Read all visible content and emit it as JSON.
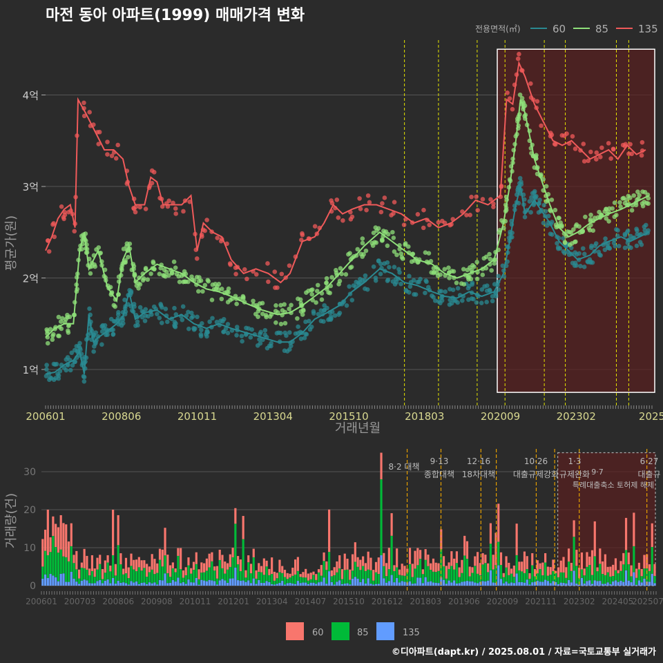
{
  "colors": {
    "bg": "#2b2b2b",
    "grid": "#555555",
    "s60": "#2a8a92",
    "s85": "#8fe07a",
    "s135": "#f05a5a",
    "vol60": "#f8766d",
    "vol85": "#00ba38",
    "vol135": "#619cff",
    "policy_yellow": "#e6e600",
    "policy_orange": "#e6a000",
    "highlight": "#5a2020"
  },
  "texts": {
    "title": "마전 동아 아파트(1999) 매매가격 변화",
    "legend_title": "전용면적(㎡)",
    "legend_60": "60",
    "legend_85": "85",
    "legend_135": "135",
    "credit": "©디아파트(dapt.kr) / 2025.08.01 / 자료=국토교통부 실거래가"
  },
  "chart_data": [
    {
      "type": "line",
      "title": "마전 동아 아파트(1999) 매매가격 변화",
      "xlabel": "거래년월",
      "ylabel": "평균가(원)",
      "x_tick_labels": [
        "200601",
        "200806",
        "201011",
        "201304",
        "201510",
        "201803",
        "202009",
        "202302",
        "2025"
      ],
      "y_tick_labels": [
        "1억",
        "2억",
        "3억",
        "4억"
      ],
      "y_ticks": [
        1,
        2,
        3,
        4
      ],
      "xlim": [
        2006.0,
        2025.6
      ],
      "ylim": [
        0.6,
        4.6
      ],
      "series": [
        {
          "name": "60",
          "points": [
            [
              2006.0,
              0.95
            ],
            [
              2006.3,
              0.97
            ],
            [
              2006.6,
              1.05
            ],
            [
              2006.9,
              1.1
            ],
            [
              2007.1,
              1.2
            ],
            [
              2007.25,
              0.95
            ],
            [
              2007.4,
              1.6
            ],
            [
              2007.55,
              1.3
            ],
            [
              2007.7,
              1.35
            ],
            [
              2008.0,
              1.42
            ],
            [
              2008.3,
              1.5
            ],
            [
              2008.5,
              1.58
            ],
            [
              2008.7,
              1.85
            ],
            [
              2008.9,
              1.55
            ],
            [
              2009.2,
              1.62
            ],
            [
              2009.6,
              1.65
            ],
            [
              2010.0,
              1.55
            ],
            [
              2010.4,
              1.6
            ],
            [
              2010.8,
              1.5
            ],
            [
              2011.2,
              1.45
            ],
            [
              2011.6,
              1.5
            ],
            [
              2012.0,
              1.45
            ],
            [
              2012.5,
              1.4
            ],
            [
              2013.0,
              1.35
            ],
            [
              2013.5,
              1.3
            ],
            [
              2013.9,
              1.3
            ],
            [
              2014.3,
              1.4
            ],
            [
              2014.7,
              1.55
            ],
            [
              2015.1,
              1.62
            ],
            [
              2015.5,
              1.7
            ],
            [
              2015.9,
              1.85
            ],
            [
              2016.3,
              1.95
            ],
            [
              2016.8,
              2.1
            ],
            [
              2017.2,
              2.05
            ],
            [
              2017.6,
              1.95
            ],
            [
              2018.0,
              1.92
            ],
            [
              2018.5,
              1.85
            ],
            [
              2018.9,
              1.8
            ],
            [
              2019.3,
              1.78
            ],
            [
              2019.7,
              1.85
            ],
            [
              2020.1,
              1.8
            ],
            [
              2020.5,
              1.85
            ],
            [
              2020.8,
              2.05
            ],
            [
              2021.0,
              2.4
            ],
            [
              2021.2,
              2.8
            ],
            [
              2021.35,
              3.0
            ],
            [
              2021.5,
              2.7
            ],
            [
              2021.8,
              2.85
            ],
            [
              2022.0,
              2.75
            ],
            [
              2022.3,
              2.6
            ],
            [
              2022.6,
              2.4
            ],
            [
              2022.9,
              2.3
            ],
            [
              2023.2,
              2.2
            ],
            [
              2023.6,
              2.25
            ],
            [
              2023.9,
              2.35
            ],
            [
              2024.2,
              2.4
            ],
            [
              2024.6,
              2.45
            ],
            [
              2024.9,
              2.4
            ],
            [
              2025.2,
              2.45
            ],
            [
              2025.5,
              2.5
            ]
          ]
        },
        {
          "name": "85",
          "points": [
            [
              2006.0,
              1.35
            ],
            [
              2006.3,
              1.45
            ],
            [
              2006.6,
              1.5
            ],
            [
              2006.9,
              1.5
            ],
            [
              2007.1,
              2.3
            ],
            [
              2007.25,
              2.5
            ],
            [
              2007.4,
              2.1
            ],
            [
              2007.7,
              2.3
            ],
            [
              2008.0,
              1.9
            ],
            [
              2008.3,
              1.75
            ],
            [
              2008.5,
              2.2
            ],
            [
              2008.7,
              2.35
            ],
            [
              2008.9,
              1.95
            ],
            [
              2009.2,
              2.05
            ],
            [
              2009.6,
              2.15
            ],
            [
              2010.0,
              2.1
            ],
            [
              2010.4,
              2.05
            ],
            [
              2010.8,
              1.95
            ],
            [
              2011.2,
              1.88
            ],
            [
              2011.6,
              1.85
            ],
            [
              2012.0,
              1.8
            ],
            [
              2012.5,
              1.72
            ],
            [
              2013.0,
              1.65
            ],
            [
              2013.5,
              1.6
            ],
            [
              2013.9,
              1.62
            ],
            [
              2014.3,
              1.7
            ],
            [
              2014.7,
              1.8
            ],
            [
              2015.1,
              1.9
            ],
            [
              2015.5,
              2.05
            ],
            [
              2015.9,
              2.2
            ],
            [
              2016.3,
              2.35
            ],
            [
              2016.8,
              2.5
            ],
            [
              2017.2,
              2.4
            ],
            [
              2017.6,
              2.3
            ],
            [
              2018.0,
              2.2
            ],
            [
              2018.5,
              2.15
            ],
            [
              2018.9,
              2.05
            ],
            [
              2019.3,
              2.0
            ],
            [
              2019.7,
              2.05
            ],
            [
              2020.1,
              2.1
            ],
            [
              2020.5,
              2.2
            ],
            [
              2020.8,
              2.6
            ],
            [
              2021.0,
              3.0
            ],
            [
              2021.2,
              3.5
            ],
            [
              2021.35,
              3.95
            ],
            [
              2021.5,
              3.8
            ],
            [
              2021.8,
              3.3
            ],
            [
              2022.0,
              3.1
            ],
            [
              2022.3,
              2.8
            ],
            [
              2022.6,
              2.55
            ],
            [
              2022.9,
              2.45
            ],
            [
              2023.2,
              2.5
            ],
            [
              2023.6,
              2.6
            ],
            [
              2023.9,
              2.65
            ],
            [
              2024.2,
              2.7
            ],
            [
              2024.6,
              2.75
            ],
            [
              2024.9,
              2.8
            ],
            [
              2025.2,
              2.85
            ],
            [
              2025.5,
              2.9
            ]
          ]
        },
        {
          "name": "135",
          "points": [
            [
              2006.0,
              2.3
            ],
            [
              2006.2,
              2.45
            ],
            [
              2006.4,
              2.65
            ],
            [
              2006.6,
              2.75
            ],
            [
              2006.8,
              2.8
            ],
            [
              2006.95,
              2.55
            ],
            [
              2007.05,
              3.95
            ],
            [
              2007.3,
              3.8
            ],
            [
              2007.6,
              3.6
            ],
            [
              2007.9,
              3.4
            ],
            [
              2008.2,
              3.4
            ],
            [
              2008.5,
              3.3
            ],
            [
              2008.7,
              3.0
            ],
            [
              2008.9,
              2.8
            ],
            [
              2009.2,
              2.8
            ],
            [
              2009.4,
              3.1
            ],
            [
              2009.6,
              3.05
            ],
            [
              2009.8,
              2.8
            ],
            [
              2010.0,
              2.8
            ],
            [
              2010.4,
              2.8
            ],
            [
              2010.7,
              2.9
            ],
            [
              2010.9,
              2.3
            ],
            [
              2011.1,
              2.6
            ],
            [
              2011.4,
              2.5
            ],
            [
              2011.7,
              2.45
            ],
            [
              2012.0,
              2.2
            ],
            [
              2012.4,
              2.05
            ],
            [
              2012.8,
              2.1
            ],
            [
              2013.2,
              2.05
            ],
            [
              2013.6,
              1.95
            ],
            [
              2013.9,
              2.05
            ],
            [
              2014.3,
              2.4
            ],
            [
              2014.7,
              2.45
            ],
            [
              2015.0,
              2.6
            ],
            [
              2015.3,
              2.8
            ],
            [
              2015.6,
              2.7
            ],
            [
              2015.9,
              2.75
            ],
            [
              2016.3,
              2.8
            ],
            [
              2016.7,
              2.8
            ],
            [
              2017.1,
              2.75
            ],
            [
              2017.5,
              2.7
            ],
            [
              2017.9,
              2.6
            ],
            [
              2018.3,
              2.65
            ],
            [
              2018.7,
              2.55
            ],
            [
              2019.1,
              2.6
            ],
            [
              2019.5,
              2.7
            ],
            [
              2019.9,
              2.85
            ],
            [
              2020.3,
              2.8
            ],
            [
              2020.7,
              2.9
            ],
            [
              2020.9,
              3.95
            ],
            [
              2021.1,
              3.9
            ],
            [
              2021.3,
              4.35
            ],
            [
              2021.5,
              4.2
            ],
            [
              2021.8,
              3.9
            ],
            [
              2022.1,
              3.7
            ],
            [
              2022.4,
              3.5
            ],
            [
              2022.7,
              3.45
            ],
            [
              2023.0,
              3.5
            ],
            [
              2023.3,
              3.4
            ],
            [
              2023.6,
              3.3
            ],
            [
              2023.9,
              3.35
            ],
            [
              2024.2,
              3.4
            ],
            [
              2024.5,
              3.3
            ],
            [
              2024.8,
              3.45
            ],
            [
              2025.1,
              3.35
            ],
            [
              2025.4,
              3.4
            ]
          ]
        }
      ],
      "policy_lines": [
        2017.6,
        2018.7,
        2019.95,
        2020.85,
        2022.12,
        2022.8,
        2024.45,
        2024.85
      ],
      "highlight_range": [
        2020.6,
        2025.6
      ]
    },
    {
      "type": "bar",
      "stacked": true,
      "ylabel": "거래량(건)",
      "x_tick_labels": [
        "200601",
        "200703",
        "200806",
        "200908",
        "201011",
        "201201",
        "201304",
        "201407",
        "201510",
        "201612",
        "201803",
        "201906",
        "202009",
        "202111",
        "202302",
        "202405",
        "202507"
      ],
      "y_tick_labels": [
        "0",
        "10",
        "20",
        "30"
      ],
      "y_ticks": [
        0,
        10,
        20,
        30
      ],
      "ylim": [
        0,
        36
      ],
      "series_names": [
        "60",
        "85",
        "135"
      ],
      "policy_annotations": [
        {
          "date": "8·2",
          "text": "8·2 대책"
        },
        {
          "date": "9·13",
          "text": "종합대책"
        },
        {
          "date": "12·16",
          "text": "18차대책"
        },
        {
          "date": "10·26",
          "text": "대출규제강화"
        },
        {
          "date": "1·3",
          "text": "규제완화"
        },
        {
          "date": "9·7",
          "text": "특례대출축소 토허제 해제"
        },
        {
          "date": "6·27",
          "text": "대출규"
        }
      ],
      "peaks": [
        {
          "period": "200603",
          "v60": 12,
          "v85": 6,
          "v135": 2
        },
        {
          "period": "200607",
          "v60": 10,
          "v85": 8,
          "v135": 2
        },
        {
          "period": "200808",
          "v60": 12,
          "v85": 6,
          "v135": 2
        },
        {
          "period": "201612",
          "v60": 7,
          "v85": 20,
          "v135": 8
        },
        {
          "period": "202009",
          "v60": 10,
          "v85": 10,
          "v135": 2
        }
      ]
    }
  ]
}
